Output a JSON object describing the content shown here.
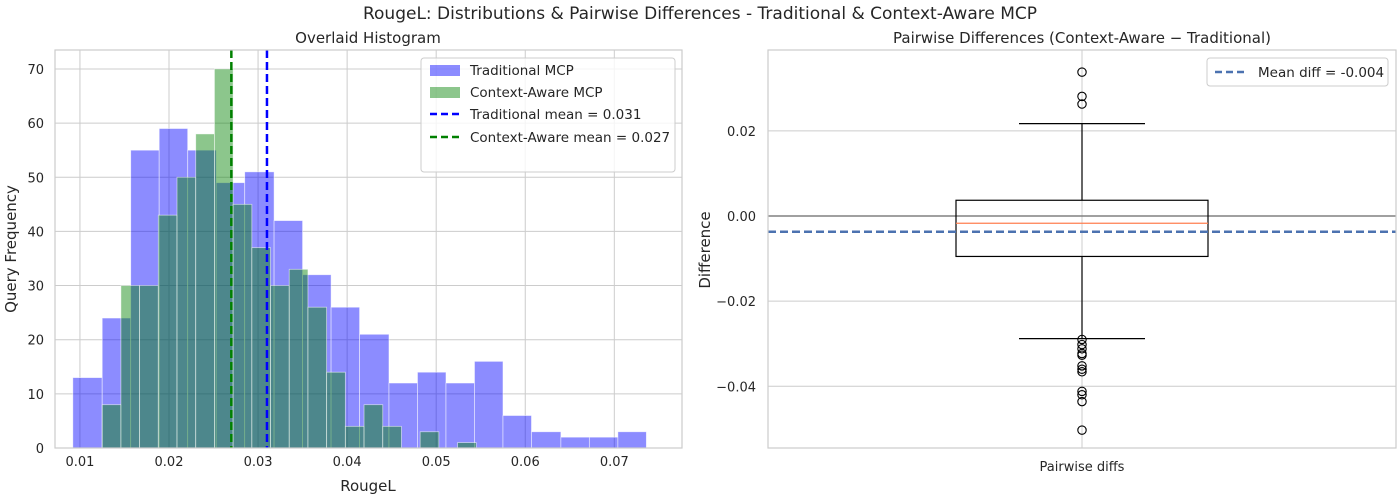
{
  "suptitle": "RougeL: Distributions & Pairwise Differences - Traditional & Context-Aware MCP",
  "colors": {
    "traditional": "#0000ff",
    "context_aware": "#008000",
    "mean_diff_line": "#4c72b0",
    "zero_line": "#808080",
    "median_line": "#ff7f50"
  },
  "chart_data": [
    {
      "type": "bar",
      "subtype": "histogram-overlaid",
      "title": "Overlaid Histogram",
      "xlabel": "RougeL",
      "ylabel": "Query Frequency",
      "xlim": [
        0.0072,
        0.0776
      ],
      "ylim": [
        0,
        73.5
      ],
      "x_ticks": [
        0.01,
        0.02,
        0.03,
        0.04,
        0.05,
        0.06,
        0.07
      ],
      "x_tick_labels": [
        "0.01",
        "0.02",
        "0.03",
        "0.04",
        "0.05",
        "0.06",
        "0.07"
      ],
      "y_ticks": [
        0,
        10,
        20,
        30,
        40,
        50,
        60,
        70
      ],
      "y_tick_labels": [
        "0",
        "10",
        "20",
        "30",
        "40",
        "50",
        "60",
        "70"
      ],
      "grid": true,
      "legend_position": "top-right",
      "series": [
        {
          "name": "Traditional MCP",
          "color": "#0000ff",
          "alpha": 0.45,
          "bins": [
            [
              0.0092,
              0.0125,
              13
            ],
            [
              0.0125,
              0.0157,
              24
            ],
            [
              0.0157,
              0.0189,
              55
            ],
            [
              0.0189,
              0.0221,
              59
            ],
            [
              0.0221,
              0.0253,
              55
            ],
            [
              0.0253,
              0.0285,
              49
            ],
            [
              0.0285,
              0.0318,
              51
            ],
            [
              0.0318,
              0.035,
              42
            ],
            [
              0.035,
              0.0382,
              32
            ],
            [
              0.0382,
              0.0414,
              26
            ],
            [
              0.0414,
              0.0447,
              21
            ],
            [
              0.0447,
              0.0479,
              12
            ],
            [
              0.0479,
              0.0511,
              14
            ],
            [
              0.0511,
              0.0543,
              12
            ],
            [
              0.0543,
              0.0575,
              16
            ],
            [
              0.0575,
              0.0607,
              6
            ],
            [
              0.0607,
              0.064,
              3
            ],
            [
              0.064,
              0.0672,
              2
            ],
            [
              0.0672,
              0.0704,
              2
            ],
            [
              0.0704,
              0.0736,
              3
            ]
          ]
        },
        {
          "name": "Context-Aware MCP",
          "color": "#008000",
          "alpha": 0.45,
          "bins": [
            [
              0.0125,
              0.0146,
              8
            ],
            [
              0.0146,
              0.0167,
              30
            ],
            [
              0.0167,
              0.0188,
              30
            ],
            [
              0.0188,
              0.0209,
              43
            ],
            [
              0.0209,
              0.023,
              50
            ],
            [
              0.023,
              0.0251,
              58
            ],
            [
              0.0251,
              0.0272,
              70
            ],
            [
              0.0272,
              0.0293,
              45
            ],
            [
              0.0293,
              0.0314,
              37
            ],
            [
              0.0314,
              0.0335,
              30
            ],
            [
              0.0335,
              0.0356,
              33
            ],
            [
              0.0356,
              0.0377,
              26
            ],
            [
              0.0377,
              0.0398,
              14
            ],
            [
              0.0398,
              0.0419,
              4
            ],
            [
              0.0419,
              0.044,
              8
            ],
            [
              0.044,
              0.0461,
              4
            ],
            [
              0.0461,
              0.0482,
              0
            ],
            [
              0.0482,
              0.0503,
              3
            ],
            [
              0.0503,
              0.0524,
              0
            ],
            [
              0.0524,
              0.0545,
              1
            ]
          ]
        }
      ],
      "mean_lines": [
        {
          "name": "Traditional mean = 0.031",
          "value": 0.031,
          "color": "#0000ff"
        },
        {
          "name": "Context-Aware mean = 0.027",
          "value": 0.027,
          "color": "#008000"
        }
      ]
    },
    {
      "type": "box",
      "title": "Pairwise Differences (Context-Aware − Traditional)",
      "xlabel": "",
      "ylabel": "Difference",
      "categories": [
        "Pairwise diffs"
      ],
      "ylim": [
        -0.0545,
        0.039
      ],
      "y_ticks": [
        -0.04,
        -0.02,
        0.0,
        0.02
      ],
      "y_tick_labels": [
        "−0.04",
        "−0.02",
        "0.00",
        "0.02"
      ],
      "grid": true,
      "legend_position": "top-right",
      "box": {
        "q1": -0.0095,
        "median": -0.0017,
        "q3": 0.0037,
        "whisker_low": -0.0288,
        "whisker_high": 0.0217
      },
      "outliers": [
        0.0338,
        0.0281,
        0.0263,
        -0.029,
        -0.0302,
        -0.0312,
        -0.0323,
        -0.0327,
        -0.0352,
        -0.036,
        -0.0366,
        -0.0412,
        -0.042,
        -0.0436,
        -0.0503
      ],
      "zero_line": 0.0,
      "mean_line": {
        "name": "Mean diff = -0.004",
        "value": -0.0037,
        "color": "#4c72b0"
      }
    }
  ]
}
